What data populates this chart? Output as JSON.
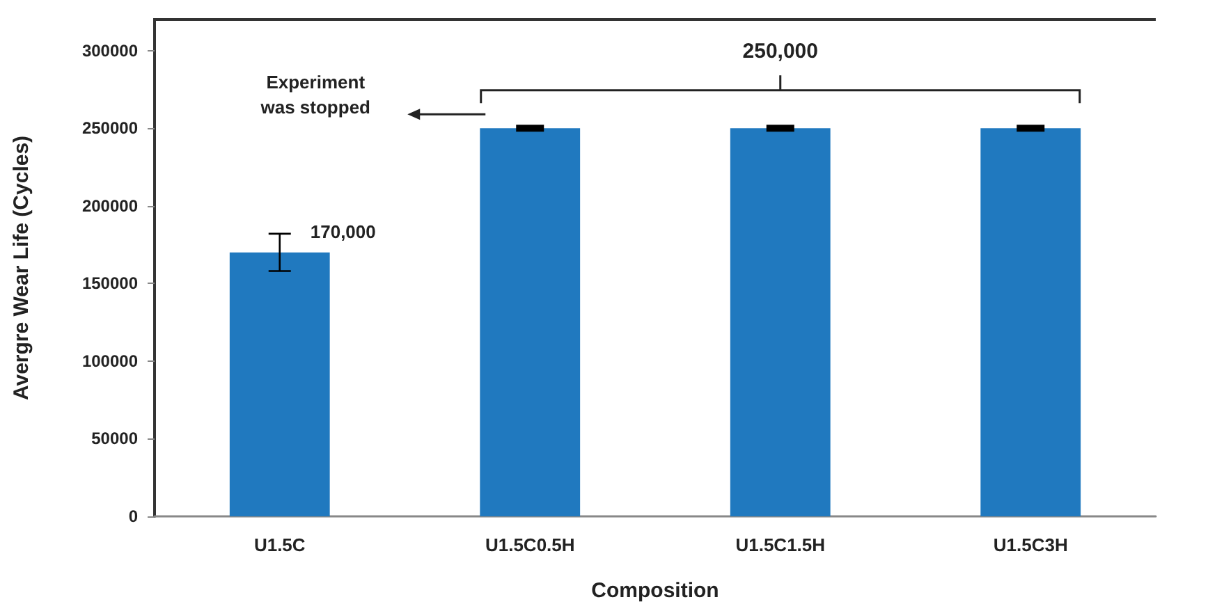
{
  "chart_data": {
    "type": "bar",
    "xlabel": "Composition",
    "ylabel": "Avergre Wear Life (Cycles)",
    "categories": [
      "U1.5C",
      "U1.5C0.5H",
      "U1.5C1.5H",
      "U1.5C3H"
    ],
    "values": [
      170000,
      250000,
      250000,
      250000
    ],
    "errors": [
      12000,
      0,
      0,
      0
    ],
    "color": "#2079bf",
    "ylim": [
      0,
      320000
    ],
    "yticks": [
      0,
      50000,
      100000,
      150000,
      200000,
      250000,
      300000
    ],
    "grid": false,
    "annotations": [
      {
        "text": "170,000",
        "x": "U1.5C",
        "y": 170000
      },
      "250,000",
      "Experiment\nwas stopped"
    ]
  }
}
